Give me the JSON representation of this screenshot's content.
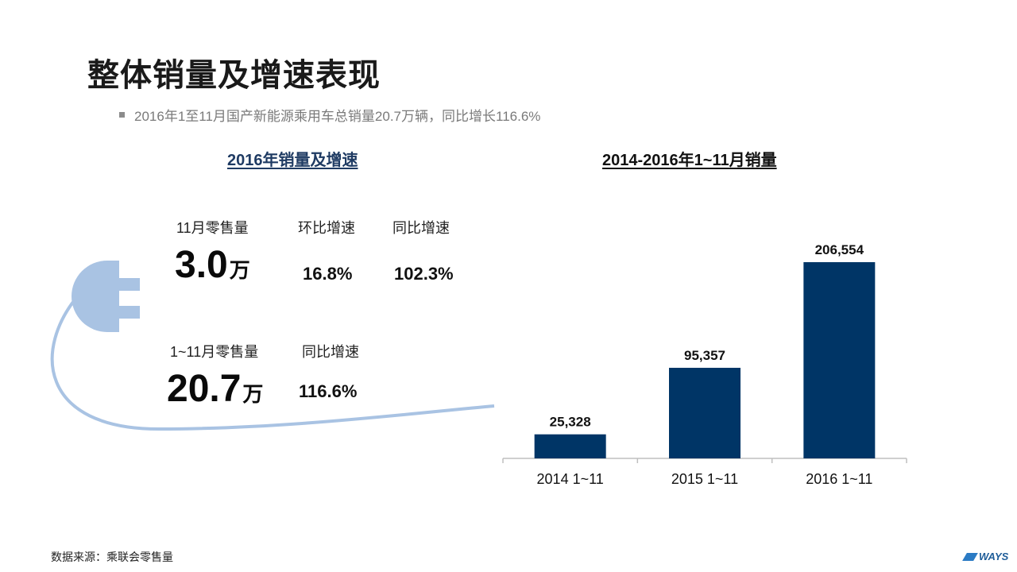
{
  "page": {
    "title": "整体销量及增速表现",
    "bullet": "2016年1至11月国产新能源乘用车总销量20.7万辆，同比增长116.6%",
    "footer": "数据来源：乘联会零售量",
    "logo_text": "WAYS"
  },
  "left_panel": {
    "title": "2016年销量及增速",
    "nov": {
      "label": "11月零售量",
      "value": "3.0",
      "unit": "万",
      "mom_label": "环比增速",
      "mom_value": "16.8%",
      "yoy_label": "同比增速",
      "yoy_value": "102.3%"
    },
    "ytd": {
      "label": "1~11月零售量",
      "value": "20.7",
      "unit": "万",
      "yoy_label": "同比增速",
      "yoy_value": "116.6%"
    },
    "plug_color": "#a9c3e3"
  },
  "chart_data": {
    "type": "bar",
    "title": "2014-2016年1~11月销量",
    "categories": [
      "2014 1~11",
      "2015 1~11",
      "2016 1~11"
    ],
    "values": [
      25328,
      95357,
      206554
    ],
    "data_labels": [
      "25,328",
      "95,357",
      "206,554"
    ],
    "xlabel": "",
    "ylabel": "",
    "ylim": [
      0,
      240000
    ],
    "grid": false,
    "bar_color": "#003566"
  }
}
